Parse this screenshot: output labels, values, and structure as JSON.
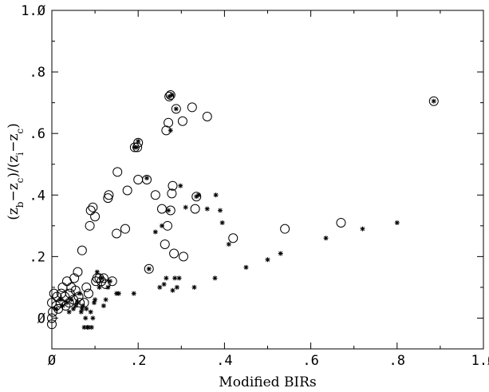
{
  "chart_data": {
    "type": "scatter",
    "xlabel": "Modified BIRs",
    "ylabel": "(z_b−z_c)/(z_i−z_c)",
    "ylabel_parts": {
      "lp1": "(z",
      "sub1": "b",
      "mid1": "−z",
      "sub2": "c",
      "mid2": ")/(z",
      "sub3": "i",
      "mid3": "−z",
      "sub4": "c",
      "rp": ")"
    },
    "xlim": [
      0,
      1.0
    ],
    "ylim": [
      -0.1,
      1.0
    ],
    "x_ticks": [
      0,
      0.2,
      0.4,
      0.6,
      0.8,
      1.0
    ],
    "x_tick_labels": [
      "Ø",
      ".2",
      ".4",
      ".6",
      ".8",
      "1.Ø"
    ],
    "y_ticks": [
      0,
      0.2,
      0.4,
      0.6,
      0.8,
      1.0
    ],
    "y_tick_labels": [
      "Ø",
      ".2",
      ".4",
      ".6",
      ".8",
      "1.Ø"
    ],
    "grid": false,
    "series": [
      {
        "marker": "circle",
        "points": [
          [
            0.0,
            -0.02
          ],
          [
            0.0,
            0.0
          ],
          [
            0.002,
            0.02
          ],
          [
            0.0,
            0.05
          ],
          [
            0.005,
            0.08
          ],
          [
            0.01,
            0.04
          ],
          [
            0.012,
            0.07
          ],
          [
            0.015,
            0.03
          ],
          [
            0.02,
            0.05
          ],
          [
            0.022,
            0.08
          ],
          [
            0.025,
            0.1
          ],
          [
            0.03,
            0.07
          ],
          [
            0.032,
            0.04
          ],
          [
            0.035,
            0.12
          ],
          [
            0.04,
            0.05
          ],
          [
            0.042,
            0.08
          ],
          [
            0.045,
            0.1
          ],
          [
            0.05,
            0.06
          ],
          [
            0.052,
            0.13
          ],
          [
            0.055,
            0.09
          ],
          [
            0.06,
            0.15
          ],
          [
            0.062,
            0.07
          ],
          [
            0.065,
            0.05
          ],
          [
            0.07,
            0.22
          ],
          [
            0.075,
            0.05
          ],
          [
            0.08,
            0.1
          ],
          [
            0.085,
            0.08
          ],
          [
            0.088,
            0.3
          ],
          [
            0.09,
            0.35
          ],
          [
            0.095,
            0.36
          ],
          [
            0.1,
            0.33
          ],
          [
            0.102,
            0.12
          ],
          [
            0.105,
            0.13
          ],
          [
            0.11,
            0.13
          ],
          [
            0.115,
            0.12
          ],
          [
            0.12,
            0.13
          ],
          [
            0.125,
            0.11
          ],
          [
            0.13,
            0.39
          ],
          [
            0.132,
            0.4
          ],
          [
            0.14,
            0.12
          ],
          [
            0.15,
            0.275
          ],
          [
            0.152,
            0.475
          ],
          [
            0.17,
            0.29
          ],
          [
            0.175,
            0.415
          ],
          [
            0.192,
            0.555
          ],
          [
            0.198,
            0.555
          ],
          [
            0.2,
            0.45
          ],
          [
            0.2,
            0.57
          ],
          [
            0.22,
            0.45
          ],
          [
            0.225,
            0.16
          ],
          [
            0.24,
            0.4
          ],
          [
            0.255,
            0.355
          ],
          [
            0.262,
            0.24
          ],
          [
            0.265,
            0.61
          ],
          [
            0.268,
            0.3
          ],
          [
            0.27,
            0.635
          ],
          [
            0.272,
            0.72
          ],
          [
            0.275,
            0.35
          ],
          [
            0.275,
            0.725
          ],
          [
            0.278,
            0.405
          ],
          [
            0.28,
            0.43
          ],
          [
            0.283,
            0.21
          ],
          [
            0.288,
            0.68
          ],
          [
            0.303,
            0.64
          ],
          [
            0.305,
            0.2
          ],
          [
            0.325,
            0.685
          ],
          [
            0.332,
            0.355
          ],
          [
            0.335,
            0.395
          ],
          [
            0.36,
            0.655
          ],
          [
            0.42,
            0.26
          ],
          [
            0.54,
            0.29
          ],
          [
            0.67,
            0.31
          ],
          [
            0.885,
            0.705
          ]
        ]
      },
      {
        "marker": "asterisk",
        "points": [
          [
            0.01,
            0.03
          ],
          [
            0.02,
            0.06
          ],
          [
            0.025,
            0.04
          ],
          [
            0.035,
            0.05
          ],
          [
            0.04,
            0.02
          ],
          [
            0.045,
            0.06
          ],
          [
            0.05,
            0.03
          ],
          [
            0.055,
            0.04
          ],
          [
            0.06,
            0.05
          ],
          [
            0.065,
            0.08
          ],
          [
            0.068,
            0.02
          ],
          [
            0.07,
            0.03
          ],
          [
            0.072,
            0.04
          ],
          [
            0.075,
            -0.03
          ],
          [
            0.078,
            0.0
          ],
          [
            0.08,
            0.03
          ],
          [
            0.082,
            -0.03
          ],
          [
            0.085,
            -0.03
          ],
          [
            0.09,
            0.02
          ],
          [
            0.092,
            -0.03
          ],
          [
            0.095,
            0.0
          ],
          [
            0.098,
            0.05
          ],
          [
            0.1,
            0.06
          ],
          [
            0.105,
            0.15
          ],
          [
            0.11,
            0.1
          ],
          [
            0.115,
            0.13
          ],
          [
            0.12,
            0.04
          ],
          [
            0.125,
            0.06
          ],
          [
            0.13,
            0.1
          ],
          [
            0.135,
            0.12
          ],
          [
            0.15,
            0.08
          ],
          [
            0.155,
            0.08
          ],
          [
            0.19,
            0.08
          ],
          [
            0.192,
            0.555
          ],
          [
            0.196,
            0.555
          ],
          [
            0.2,
            0.575
          ],
          [
            0.22,
            0.455
          ],
          [
            0.225,
            0.16
          ],
          [
            0.24,
            0.28
          ],
          [
            0.25,
            0.1
          ],
          [
            0.255,
            0.3
          ],
          [
            0.26,
            0.11
          ],
          [
            0.265,
            0.13
          ],
          [
            0.27,
            0.35
          ],
          [
            0.272,
            0.72
          ],
          [
            0.275,
            0.61
          ],
          [
            0.278,
            0.725
          ],
          [
            0.28,
            0.09
          ],
          [
            0.285,
            0.13
          ],
          [
            0.288,
            0.68
          ],
          [
            0.29,
            0.1
          ],
          [
            0.295,
            0.13
          ],
          [
            0.298,
            0.43
          ],
          [
            0.31,
            0.36
          ],
          [
            0.33,
            0.1
          ],
          [
            0.335,
            0.395
          ],
          [
            0.34,
            0.4
          ],
          [
            0.36,
            0.355
          ],
          [
            0.378,
            0.13
          ],
          [
            0.38,
            0.4
          ],
          [
            0.39,
            0.35
          ],
          [
            0.395,
            0.31
          ],
          [
            0.41,
            0.24
          ],
          [
            0.45,
            0.165
          ],
          [
            0.5,
            0.19
          ],
          [
            0.53,
            0.21
          ],
          [
            0.635,
            0.26
          ],
          [
            0.72,
            0.29
          ],
          [
            0.8,
            0.31
          ],
          [
            0.885,
            0.705
          ]
        ]
      }
    ]
  }
}
